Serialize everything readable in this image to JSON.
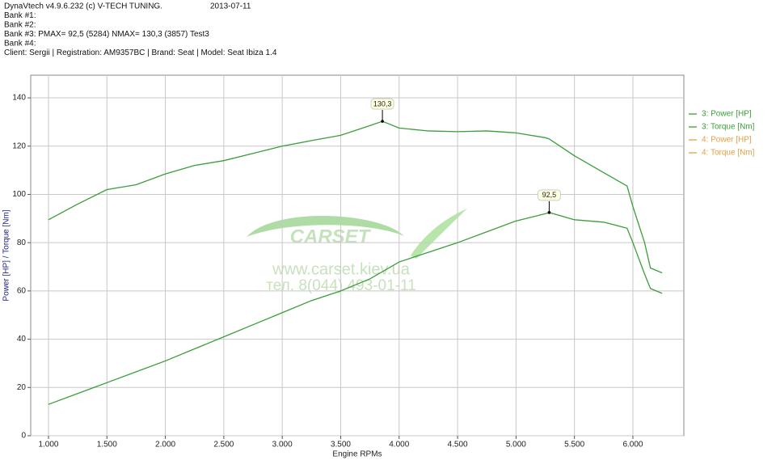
{
  "header": {
    "lines": [
      "DynaVtech v4.9.6.232 (c) V-TECH TUNING.",
      "Bank #1:",
      "Bank #2:",
      "Bank #3: PMAX= 92,5 (5284)    NMAX= 130,3 (3857)    Test3",
      "Bank #4:",
      "Client: Sergii | Registration: AM9357BC | Brand: Seat | Model: Seat Ibiza 1.4"
    ],
    "date": "2013-07-11"
  },
  "watermark": {
    "brand": "CARSET",
    "url": "www.carset.kiev.ua",
    "phone": "тел. 8(044) 493-01-11"
  },
  "chart_data": {
    "type": "line",
    "x_label": "Engine RPMs",
    "y_label": "Power [HP] / Torque [Nm]",
    "x": [
      1000,
      1250,
      1500,
      1750,
      2000,
      2250,
      2500,
      2750,
      3000,
      3250,
      3500,
      3750,
      3857,
      4000,
      4250,
      4500,
      4750,
      5000,
      5250,
      5284,
      5500,
      5750,
      5950,
      6000,
      6100,
      6150,
      6250
    ],
    "series": [
      {
        "name": "3: Power [HP]",
        "color": "#3a9e3a",
        "values": [
          13,
          17.5,
          22,
          26.5,
          31,
          36,
          41,
          46,
          51,
          56,
          60,
          65,
          68,
          72,
          76,
          80,
          84.5,
          89,
          92,
          92.5,
          89.5,
          88.5,
          86,
          80,
          67,
          61,
          59
        ]
      },
      {
        "name": "3: Torque [Nm]",
        "color": "#3a9e3a",
        "values": [
          89.5,
          96,
          102,
          104,
          108.5,
          112,
          114,
          117,
          120,
          122.3,
          124.5,
          128.5,
          130.3,
          127.5,
          126.3,
          126,
          126.3,
          125.5,
          123.5,
          123,
          116,
          109,
          103.5,
          95,
          80,
          69.5,
          67.5
        ]
      },
      {
        "name": "4: Power [HP]",
        "color": "#e0a040",
        "values": [
          null,
          null,
          null,
          null,
          null,
          null,
          null,
          null,
          null,
          null,
          null,
          null,
          null,
          null,
          null,
          null,
          null,
          null,
          null,
          null,
          null,
          null,
          null,
          null,
          null,
          null,
          null
        ]
      },
      {
        "name": "4: Torque [Nm]",
        "color": "#e0a040",
        "values": [
          null,
          null,
          null,
          null,
          null,
          null,
          null,
          null,
          null,
          null,
          null,
          null,
          null,
          null,
          null,
          null,
          null,
          null,
          null,
          null,
          null,
          null,
          null,
          null,
          null,
          null,
          null
        ]
      }
    ],
    "annotations": [
      {
        "text": "130,3",
        "x": 3857,
        "y": 130.3
      },
      {
        "text": "92,5",
        "x": 5284,
        "y": 92.5
      }
    ],
    "xlim": [
      848,
      6436
    ],
    "ylim": [
      0,
      149.4
    ],
    "xticks": [
      {
        "value": 1000,
        "label": "1.000"
      },
      {
        "value": 1500,
        "label": "1.500"
      },
      {
        "value": 2000,
        "label": "2.000"
      },
      {
        "value": 2500,
        "label": "2.500"
      },
      {
        "value": 3000,
        "label": "3.000"
      },
      {
        "value": 3500,
        "label": "3.500"
      },
      {
        "value": 4000,
        "label": "4.000"
      },
      {
        "value": 4500,
        "label": "4.500"
      },
      {
        "value": 5000,
        "label": "5.000"
      },
      {
        "value": 5500,
        "label": "5.500"
      },
      {
        "value": 6000,
        "label": "6.000"
      }
    ],
    "yticks": [
      0,
      20,
      40,
      60,
      80,
      100,
      120,
      140
    ],
    "grid": true,
    "legend": "right"
  }
}
